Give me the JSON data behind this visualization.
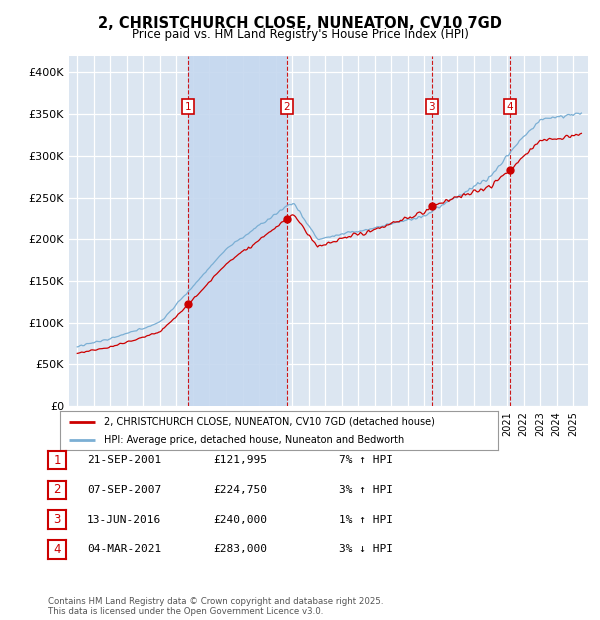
{
  "title_line1": "2, CHRISTCHURCH CLOSE, NUNEATON, CV10 7GD",
  "title_line2": "Price paid vs. HM Land Registry's House Price Index (HPI)",
  "background_color": "#ffffff",
  "plot_bg_color": "#dce6f1",
  "shade_color": "#c5d8ef",
  "grid_color": "#ffffff",
  "line1_color": "#cc0000",
  "line2_color": "#7bafd4",
  "purchases": [
    {
      "num": 1,
      "date_str": "21-SEP-2001",
      "price": 121995,
      "pct": "7%",
      "dir": "↑",
      "year": 2001.72
    },
    {
      "num": 2,
      "date_str": "07-SEP-2007",
      "price": 224750,
      "pct": "3%",
      "dir": "↑",
      "year": 2007.68
    },
    {
      "num": 3,
      "date_str": "13-JUN-2016",
      "price": 240000,
      "pct": "1%",
      "dir": "↑",
      "year": 2016.45
    },
    {
      "num": 4,
      "date_str": "04-MAR-2021",
      "price": 283000,
      "pct": "3%",
      "dir": "↓",
      "year": 2021.17
    }
  ],
  "legend1_label": "2, CHRISTCHURCH CLOSE, NUNEATON, CV10 7GD (detached house)",
  "legend2_label": "HPI: Average price, detached house, Nuneaton and Bedworth",
  "footer1": "Contains HM Land Registry data © Crown copyright and database right 2025.",
  "footer2": "This data is licensed under the Open Government Licence v3.0.",
  "ylim_min": 0,
  "ylim_max": 420000,
  "yticks": [
    0,
    50000,
    100000,
    150000,
    200000,
    250000,
    300000,
    350000,
    400000
  ],
  "ytick_labels": [
    "£0",
    "£50K",
    "£100K",
    "£150K",
    "£200K",
    "£250K",
    "£300K",
    "£350K",
    "£400K"
  ],
  "xmin": 1994.5,
  "xmax": 2025.9
}
